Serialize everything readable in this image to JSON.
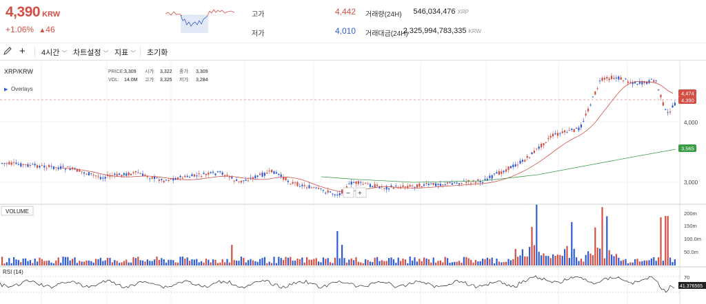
{
  "header": {
    "price": "4,390",
    "currency": "KRW",
    "change_pct": "+1.06%",
    "change_arrow": "▲",
    "change_amt": "46",
    "high_label": "고가",
    "high_value": "4,442",
    "low_label": "저가",
    "low_value": "4,010",
    "volume_label": "거래량(24H)",
    "volume_value": "546,034,476",
    "volume_unit": "XRP",
    "amount_label": "거래대금(24H)",
    "amount_value": "2,325,994,783,335",
    "amount_unit": "KRW"
  },
  "toolbar": {
    "pencil_icon": "pencil-icon",
    "crosshair_icon": "crosshair-icon",
    "interval": "4시간",
    "chart_settings": "차트설정",
    "indicators": "지표",
    "reset": "초기화"
  },
  "chart": {
    "pair": "XRP/KRW",
    "overlays": "Overlays",
    "ohlc": {
      "price_label": "PRICE:",
      "price": "3,309",
      "open_label": "시가:",
      "open": "3,322",
      "close_label": "종가:",
      "close": "3,309",
      "vol_label": "VOL:",
      "vol": "14.0M",
      "high_label": "고가:",
      "high": "3,325",
      "low_label": "저가:",
      "low": "3,284"
    },
    "price_axis": [
      "4,000",
      "3,000"
    ],
    "price_tags": [
      {
        "text": "4,474",
        "color": "#d24f45"
      },
      {
        "text": "4,390",
        "color": "#d24f45"
      },
      {
        "text": "3,565",
        "color": "#3b9b45"
      }
    ],
    "zoom_minus": "−",
    "zoom_plus": "+",
    "volume_label": "VOLUME",
    "volume_axis": [
      "200m",
      "150m",
      "100.0m",
      "50.0m"
    ],
    "rsi_label": "RSI (14)",
    "rsi_axis": [
      "70"
    ],
    "rsi_value": "41.376565",
    "up_color": "#d24f45",
    "down_color": "#2f5bd4",
    "ma_long_color": "#3b9b45",
    "ma_short_color": "#d24f45"
  }
}
